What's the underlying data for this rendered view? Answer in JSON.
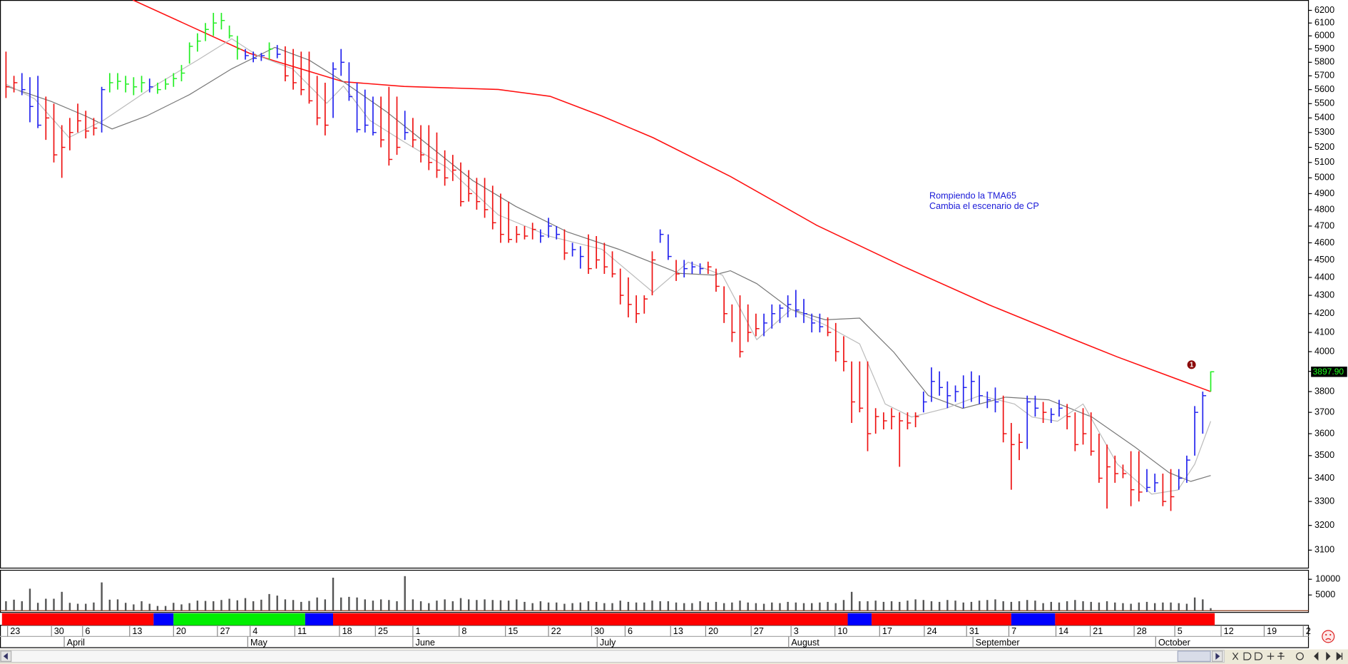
{
  "chart_data": {
    "type": "ohlc",
    "log_y": true,
    "xlim": [
      -0.75,
      163.25
    ],
    "ylim": [
      3031,
      6283
    ],
    "yticks": [
      3100,
      3200,
      3300,
      3400,
      3500,
      3600,
      3700,
      3800,
      3900,
      4000,
      4100,
      4200,
      4300,
      4400,
      4500,
      4600,
      4700,
      4800,
      4900,
      5000,
      5100,
      5200,
      5300,
      5400,
      5500,
      5600,
      5700,
      5800,
      5900,
      6000,
      6100,
      6200
    ],
    "xticks": [
      {
        "value": 0.2,
        "label": "23"
      },
      {
        "value": 5.7,
        "label": "30"
      },
      {
        "value": 9.6,
        "label": "6"
      },
      {
        "value": 15.5,
        "label": "13"
      },
      {
        "value": 21.0,
        "label": "20"
      },
      {
        "value": 26.5,
        "label": "27"
      },
      {
        "value": 30.6,
        "label": "4"
      },
      {
        "value": 36.2,
        "label": "11"
      },
      {
        "value": 41.8,
        "label": "18"
      },
      {
        "value": 46.3,
        "label": "25"
      },
      {
        "value": 51.0,
        "label": "1"
      },
      {
        "value": 56.8,
        "label": "8"
      },
      {
        "value": 62.6,
        "label": "15"
      },
      {
        "value": 68.0,
        "label": "22"
      },
      {
        "value": 73.4,
        "label": "30"
      },
      {
        "value": 77.6,
        "label": "6"
      },
      {
        "value": 83.3,
        "label": "13"
      },
      {
        "value": 87.7,
        "label": "20"
      },
      {
        "value": 93.4,
        "label": "27"
      },
      {
        "value": 98.4,
        "label": "3"
      },
      {
        "value": 103.9,
        "label": "10"
      },
      {
        "value": 109.5,
        "label": "17"
      },
      {
        "value": 115.1,
        "label": "24"
      },
      {
        "value": 120.4,
        "label": "31"
      },
      {
        "value": 125.7,
        "label": "7"
      },
      {
        "value": 131.6,
        "label": "14"
      },
      {
        "value": 135.9,
        "label": "21"
      },
      {
        "value": 141.4,
        "label": "28"
      },
      {
        "value": 146.5,
        "label": "5"
      },
      {
        "value": 152.3,
        "label": "12"
      },
      {
        "value": 157.7,
        "label": "19"
      },
      {
        "value": 162.6,
        "label": "2"
      }
    ],
    "month_ticks": [
      {
        "value": 7.3,
        "label": "April"
      },
      {
        "value": 30.3,
        "label": "May"
      },
      {
        "value": 51.0,
        "label": "June"
      },
      {
        "value": 74.1,
        "label": "July"
      },
      {
        "value": 98.1,
        "label": "August"
      },
      {
        "value": 121.2,
        "label": "September"
      },
      {
        "value": 144.1,
        "label": "October"
      }
    ],
    "high": [
      5880,
      5700,
      5720,
      5690,
      5700,
      5550,
      5500,
      5350,
      5400,
      5500,
      5450,
      5400,
      5620,
      5720,
      5720,
      5700,
      5690,
      5700,
      5680,
      5650,
      5680,
      5720,
      5780,
      5950,
      6020,
      6100,
      6180,
      6180,
      6080,
      6000,
      5900,
      5880,
      5870,
      5950,
      5930,
      5920,
      5900,
      5880,
      5880,
      5700,
      5650,
      5800,
      5900,
      5800,
      5650,
      5600,
      5550,
      5550,
      5620,
      5550,
      5450,
      5400,
      5350,
      5350,
      5300,
      5180,
      5150,
      5100,
      5050,
      5000,
      5000,
      4950,
      4900,
      4850,
      4700,
      4700,
      4720,
      4680,
      4750,
      4700,
      4680,
      4600,
      4580,
      4650,
      4640,
      4600,
      4550,
      4450,
      4400,
      4300,
      4300,
      4550,
      4680,
      4650,
      4500,
      4500,
      4490,
      4480,
      4490,
      4450,
      4350,
      4250,
      4300,
      4250,
      4200,
      4200,
      4250,
      4250,
      4300,
      4330,
      4280,
      4200,
      4200,
      4180,
      4150,
      4080,
      3950,
      3950,
      3950,
      3720,
      3700,
      3720,
      3700,
      3700,
      3700,
      3800,
      3920,
      3900,
      3850,
      3830,
      3880,
      3900,
      3880,
      3800,
      3820,
      3780,
      3650,
      3600,
      3780,
      3780,
      3750,
      3720,
      3760,
      3740,
      3700,
      3720,
      3700,
      3600,
      3550,
      3500,
      3460,
      3520,
      3520,
      3440,
      3420,
      3420,
      3440,
      3440,
      3500,
      3730,
      3800,
      3900
    ],
    "low": [
      5540,
      5580,
      5560,
      5370,
      5330,
      5250,
      5100,
      5000,
      5180,
      5300,
      5260,
      5280,
      5300,
      5580,
      5600,
      5580,
      5560,
      5580,
      5580,
      5570,
      5600,
      5620,
      5660,
      5790,
      5880,
      5960,
      6000,
      6050,
      5980,
      5820,
      5820,
      5800,
      5810,
      5820,
      5830,
      5660,
      5600,
      5560,
      5500,
      5350,
      5280,
      5400,
      5700,
      5520,
      5300,
      5300,
      5280,
      5200,
      5080,
      5150,
      5250,
      5200,
      5100,
      5050,
      5000,
      4950,
      4980,
      4820,
      4850,
      4800,
      4750,
      4680,
      4600,
      4600,
      4600,
      4620,
      4620,
      4600,
      4630,
      4620,
      4500,
      4520,
      4450,
      4420,
      4450,
      4420,
      4400,
      4250,
      4180,
      4150,
      4200,
      4300,
      4600,
      4500,
      4380,
      4400,
      4420,
      4420,
      4420,
      4320,
      4150,
      4050,
      3970,
      4050,
      4080,
      4080,
      4120,
      4150,
      4180,
      4180,
      4150,
      4100,
      4100,
      4080,
      3950,
      3900,
      3650,
      3700,
      3520,
      3600,
      3620,
      3620,
      3450,
      3620,
      3630,
      3700,
      3750,
      3780,
      3720,
      3750,
      3720,
      3750,
      3740,
      3720,
      3700,
      3560,
      3350,
      3480,
      3530,
      3680,
      3650,
      3650,
      3680,
      3620,
      3520,
      3550,
      3500,
      3380,
      3270,
      3380,
      3400,
      3280,
      3300,
      3340,
      3340,
      3280,
      3260,
      3350,
      3380,
      3500,
      3600,
      3800
    ],
    "close": [
      5620,
      5650,
      5600,
      5480,
      5350,
      5400,
      5150,
      5200,
      5300,
      5380,
      5310,
      5330,
      5600,
      5650,
      5660,
      5640,
      5620,
      5650,
      5620,
      5600,
      5640,
      5680,
      5720,
      5920,
      5960,
      6050,
      6100,
      6120,
      6000,
      5900,
      5850,
      5830,
      5850,
      5900,
      5860,
      5700,
      5650,
      5600,
      5520,
      5400,
      5350,
      5750,
      5800,
      5550,
      5320,
      5350,
      5300,
      5250,
      5120,
      5200,
      5300,
      5250,
      5150,
      5100,
      5050,
      5000,
      5050,
      4850,
      4900,
      4850,
      4800,
      4720,
      4650,
      4620,
      4650,
      4640,
      4680,
      4640,
      4700,
      4650,
      4540,
      4560,
      4520,
      4450,
      4500,
      4460,
      4420,
      4300,
      4250,
      4200,
      4280,
      4500,
      4650,
      4520,
      4420,
      4450,
      4460,
      4450,
      4460,
      4350,
      4200,
      4100,
      4000,
      4100,
      4120,
      4150,
      4200,
      4230,
      4250,
      4220,
      4200,
      4150,
      4130,
      4100,
      4000,
      3950,
      3750,
      3720,
      3600,
      3680,
      3660,
      3680,
      3660,
      3650,
      3680,
      3750,
      3850,
      3820,
      3780,
      3800,
      3820,
      3850,
      3780,
      3760,
      3750,
      3600,
      3550,
      3560,
      3750,
      3720,
      3700,
      3690,
      3720,
      3680,
      3550,
      3600,
      3520,
      3400,
      3450,
      3420,
      3420,
      3350,
      3340,
      3360,
      3380,
      3300,
      3320,
      3400,
      3480,
      3700,
      3780,
      3897.9
    ],
    "colors": [
      "#e11",
      "#e11",
      "#22e",
      "#22e",
      "#22e",
      "#e11",
      "#e11",
      "#e11",
      "#e11",
      "#e11",
      "#e11",
      "#e11",
      "#22e",
      "#2e2",
      "#2e2",
      "#2e2",
      "#2e2",
      "#2e2",
      "#22e",
      "#2e2",
      "#2e2",
      "#2e2",
      "#2e2",
      "#2e2",
      "#2e2",
      "#2e2",
      "#2e2",
      "#2e2",
      "#2e2",
      "#2e2",
      "#22e",
      "#22e",
      "#22e",
      "#2e2",
      "#22e",
      "#e11",
      "#e11",
      "#e11",
      "#e11",
      "#e11",
      "#e11",
      "#22e",
      "#22e",
      "#22e",
      "#22e",
      "#22e",
      "#22e",
      "#e11",
      "#e11",
      "#e11",
      "#22e",
      "#e11",
      "#e11",
      "#e11",
      "#e11",
      "#e11",
      "#e11",
      "#e11",
      "#e11",
      "#e11",
      "#e11",
      "#e11",
      "#e11",
      "#e11",
      "#e11",
      "#e11",
      "#e11",
      "#22e",
      "#22e",
      "#22e",
      "#e11",
      "#22e",
      "#22e",
      "#e11",
      "#e11",
      "#e11",
      "#e11",
      "#e11",
      "#e11",
      "#e11",
      "#e11",
      "#e11",
      "#22e",
      "#22e",
      "#e11",
      "#22e",
      "#22e",
      "#22e",
      "#e11",
      "#e11",
      "#e11",
      "#e11",
      "#e11",
      "#e11",
      "#e11",
      "#22e",
      "#22e",
      "#22e",
      "#22e",
      "#22e",
      "#22e",
      "#22e",
      "#22e",
      "#e11",
      "#e11",
      "#e11",
      "#e11",
      "#e11",
      "#e11",
      "#e11",
      "#e11",
      "#e11",
      "#e11",
      "#e11",
      "#e11",
      "#22e",
      "#22e",
      "#22e",
      "#22e",
      "#22e",
      "#22e",
      "#22e",
      "#22e",
      "#22e",
      "#22e",
      "#e11",
      "#e11",
      "#e11",
      "#22e",
      "#22e",
      "#e11",
      "#22e",
      "#22e",
      "#e11",
      "#e11",
      "#e11",
      "#e11",
      "#e11",
      "#e11",
      "#e11",
      "#e11",
      "#e11",
      "#e11",
      "#22e",
      "#22e",
      "#e11",
      "#e11",
      "#22e",
      "#22e",
      "#22e",
      "#22e",
      "#2e2"
    ],
    "lines": [
      {
        "color": "#ff1010",
        "x": [
          15.9,
          30.5,
          42.3,
          49.9,
          61.7,
          68.2,
          74.7,
          81.1,
          90.8,
          101.6,
          112.4,
          123.2,
          133.9,
          139.3,
          151
        ],
        "values": [
          6283,
          5868,
          5657,
          5623,
          5601,
          5552,
          5413,
          5265,
          5009,
          4705,
          4464,
          4248,
          4062,
          3973,
          3800
        ]
      },
      {
        "color": "#777777",
        "x": [
          0,
          5.7,
          10.0,
          13.3,
          17.6,
          23.0,
          28.3,
          33.7,
          38.0,
          42.3,
          47.7,
          53.1,
          58.5,
          63.9,
          70.4,
          76.8,
          84.4,
          88.7,
          90.8,
          94.1,
          98.4,
          102.7,
          107.0,
          111.3,
          115.6,
          119.9,
          125.3,
          130.7,
          136.1,
          141.5,
          145.8,
          148.5,
          151
        ],
        "values": [
          5626,
          5515,
          5413,
          5324,
          5413,
          5564,
          5752,
          5912,
          5816,
          5657,
          5443,
          5208,
          4983,
          4820,
          4664,
          4562,
          4423,
          4413,
          4438,
          4365,
          4223,
          4167,
          4176,
          3996,
          3781,
          3719,
          3773,
          3760,
          3678,
          3539,
          3424,
          3386,
          3412
        ]
      },
      {
        "color": "#bbbbbb",
        "x": [
          0,
          3.6,
          7.9,
          12.2,
          15.4,
          18.6,
          24.0,
          28.3,
          31.6,
          35.9,
          40.2,
          42.3,
          45.6,
          49.9,
          55.3,
          61.7,
          68.2,
          74.7,
          81.1,
          85.5,
          89.8,
          94.1,
          98.4,
          102.7,
          107.0,
          110.2,
          113.5,
          117.8,
          122.1,
          126.4,
          128.6,
          131.8,
          135.0,
          139.3,
          143.6,
          146.9,
          149.0,
          151
        ],
        "values": [
          5639,
          5534,
          5266,
          5383,
          5503,
          5626,
          5816,
          5978,
          5848,
          5752,
          5503,
          5626,
          5383,
          5236,
          5066,
          4768,
          4638,
          4562,
          4317,
          4487,
          4413,
          4062,
          4223,
          4139,
          4040,
          3740,
          3678,
          3719,
          3781,
          3740,
          3678,
          3658,
          3740,
          3462,
          3331,
          3349,
          3462,
          3658
        ]
      }
    ],
    "last_price": {
      "value": 3897.9,
      "label": "3897.90"
    },
    "annotations": [
      "Rompiendo la TMA65",
      "Cambia el escenario de CP"
    ],
    "marker_label": "1",
    "volume": {
      "color": "#555555",
      "ylim": [
        0,
        12600
      ],
      "yticks": [
        5000,
        10000
      ],
      "values": [
        3000,
        3500,
        3000,
        7000,
        2500,
        3800,
        3800,
        6000,
        2500,
        2200,
        2200,
        2600,
        9000,
        3500,
        3600,
        2500,
        2000,
        3000,
        2200,
        1500,
        1500,
        2500,
        2000,
        2400,
        3200,
        3100,
        3000,
        3400,
        3800,
        3300,
        4000,
        3000,
        3500,
        5300,
        4800,
        3600,
        3400,
        2800,
        3100,
        4200,
        3600,
        10500,
        4200,
        4400,
        4200,
        3600,
        3200,
        3600,
        3400,
        3000,
        11000,
        3600,
        3000,
        2400,
        3200,
        3600,
        3000,
        4000,
        3600,
        3400,
        3600,
        3400,
        3300,
        3200,
        3600,
        2800,
        2400,
        3000,
        2600,
        2600,
        2200,
        2400,
        2600,
        3000,
        2800,
        2400,
        2400,
        3200,
        2800,
        2600,
        2600,
        3200,
        3000,
        3000,
        2600,
        2400,
        2400,
        3000,
        2600,
        2800,
        2400,
        2600,
        3200,
        2600,
        2400,
        2200,
        2600,
        2400,
        2800,
        2600,
        2400,
        2400,
        2600,
        2800,
        2400,
        3400,
        6000,
        3000,
        3000,
        3200,
        2800,
        3000,
        2800,
        3200,
        3600,
        3400,
        3000,
        2800,
        3400,
        3200,
        2600,
        2800,
        3200,
        3400,
        3600,
        3000,
        2800,
        3000,
        3400,
        3200,
        2400,
        2800,
        2600,
        3000,
        3400,
        3000,
        2800,
        2600,
        3000,
        2600,
        2400,
        2200,
        2600,
        2800,
        2400,
        2600,
        2600,
        2400,
        2200,
        4200,
        3600,
        800
      ]
    },
    "state_band": [
      {
        "from": -0.5,
        "to": 18.5,
        "color": "#ff0000"
      },
      {
        "from": 18.5,
        "to": 21.0,
        "color": "#0000ff"
      },
      {
        "from": 21.0,
        "to": 37.5,
        "color": "#00ee00"
      },
      {
        "from": 37.5,
        "to": 41.0,
        "color": "#0000ff"
      },
      {
        "from": 41.0,
        "to": 105.5,
        "color": "#ff0000"
      },
      {
        "from": 105.5,
        "to": 108.5,
        "color": "#0000ff"
      },
      {
        "from": 108.5,
        "to": 126.0,
        "color": "#ff0000"
      },
      {
        "from": 126.0,
        "to": 131.5,
        "color": "#0000ff"
      },
      {
        "from": 131.5,
        "to": 151.5,
        "color": "#ff0000"
      }
    ]
  }
}
